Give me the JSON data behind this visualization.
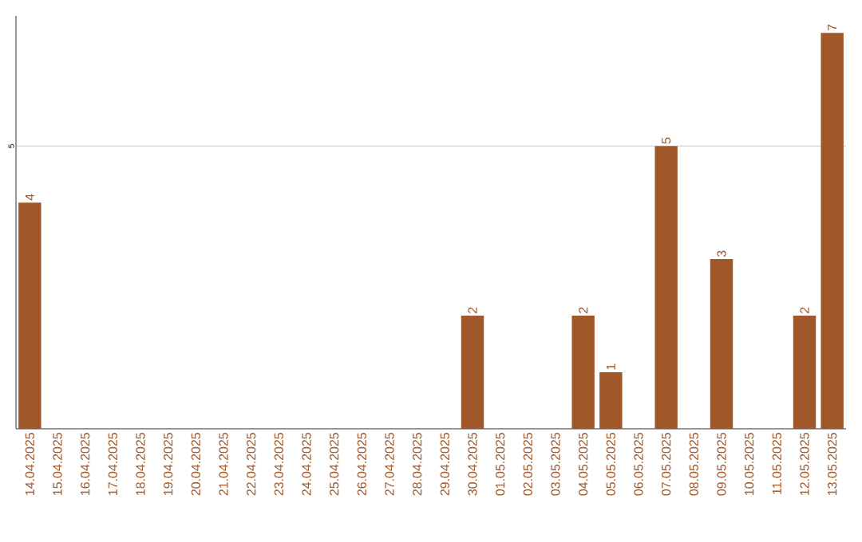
{
  "chart_data": {
    "type": "bar",
    "categories": [
      "14.04.2025",
      "15.04.2025",
      "16.04.2025",
      "17.04.2025",
      "18.04.2025",
      "19.04.2025",
      "20.04.2025",
      "21.04.2025",
      "22.04.2025",
      "23.04.2025",
      "24.04.2025",
      "25.04.2025",
      "26.04.2025",
      "27.04.2025",
      "28.04.2025",
      "29.04.2025",
      "30.04.2025",
      "01.05.2025",
      "02.05.2025",
      "03.05.2025",
      "04.05.2025",
      "05.05.2025",
      "06.05.2025",
      "07.05.2025",
      "08.05.2025",
      "09.05.2025",
      "10.05.2025",
      "11.05.2025",
      "12.05.2025",
      "13.05.2025"
    ],
    "values": [
      4,
      0,
      0,
      0,
      0,
      0,
      0,
      0,
      0,
      0,
      0,
      0,
      0,
      0,
      0,
      0,
      2,
      0,
      0,
      0,
      2,
      1,
      0,
      5,
      0,
      3,
      0,
      0,
      2,
      7
    ],
    "value_labels": [
      "4",
      null,
      null,
      null,
      null,
      null,
      null,
      null,
      null,
      null,
      null,
      null,
      null,
      null,
      null,
      null,
      "2",
      null,
      null,
      null,
      "2",
      "1",
      null,
      "5",
      null,
      "3",
      null,
      null,
      "2",
      "7"
    ],
    "color": "#a0582a",
    "ylim": [
      0,
      7.3
    ],
    "yticks": [
      5
    ],
    "grid": "y"
  }
}
